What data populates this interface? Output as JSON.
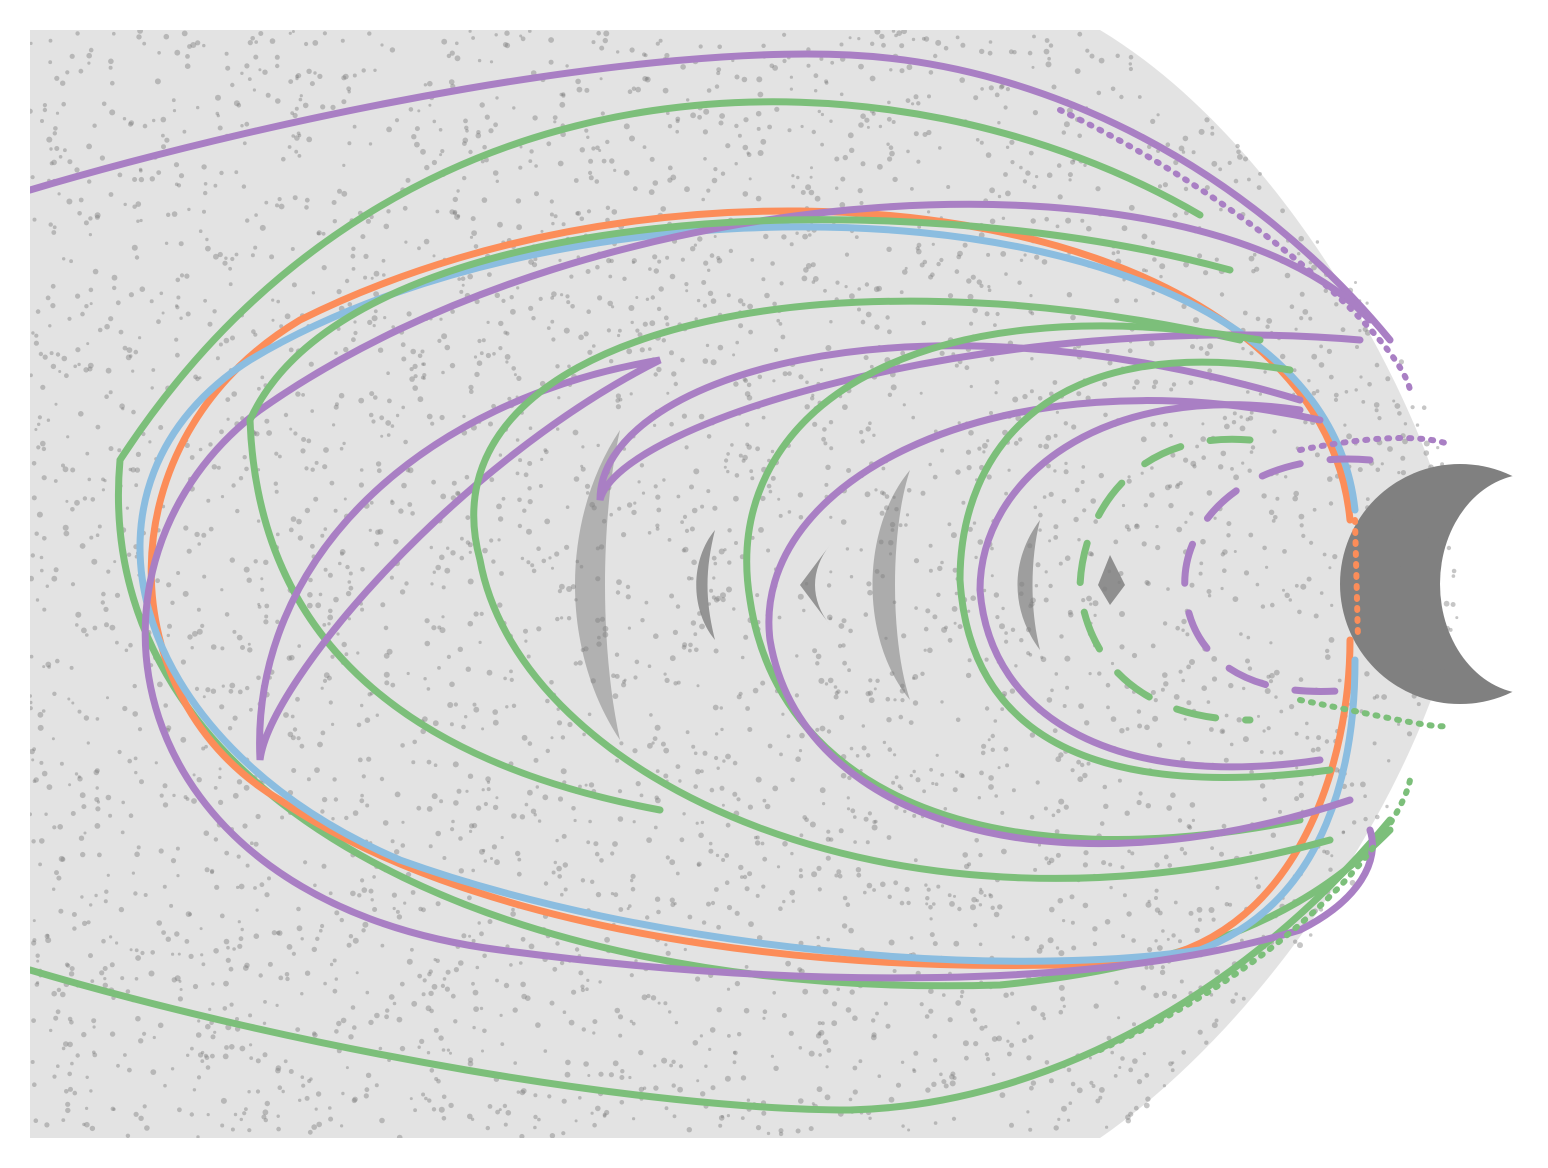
{
  "figure": {
    "orbit_colors": {
      "purple": "#a97fc4",
      "green": "#7cbf7a",
      "blue": "#8bbde0",
      "orange": "#fc8d59"
    },
    "chaos_color": "#808080"
  }
}
